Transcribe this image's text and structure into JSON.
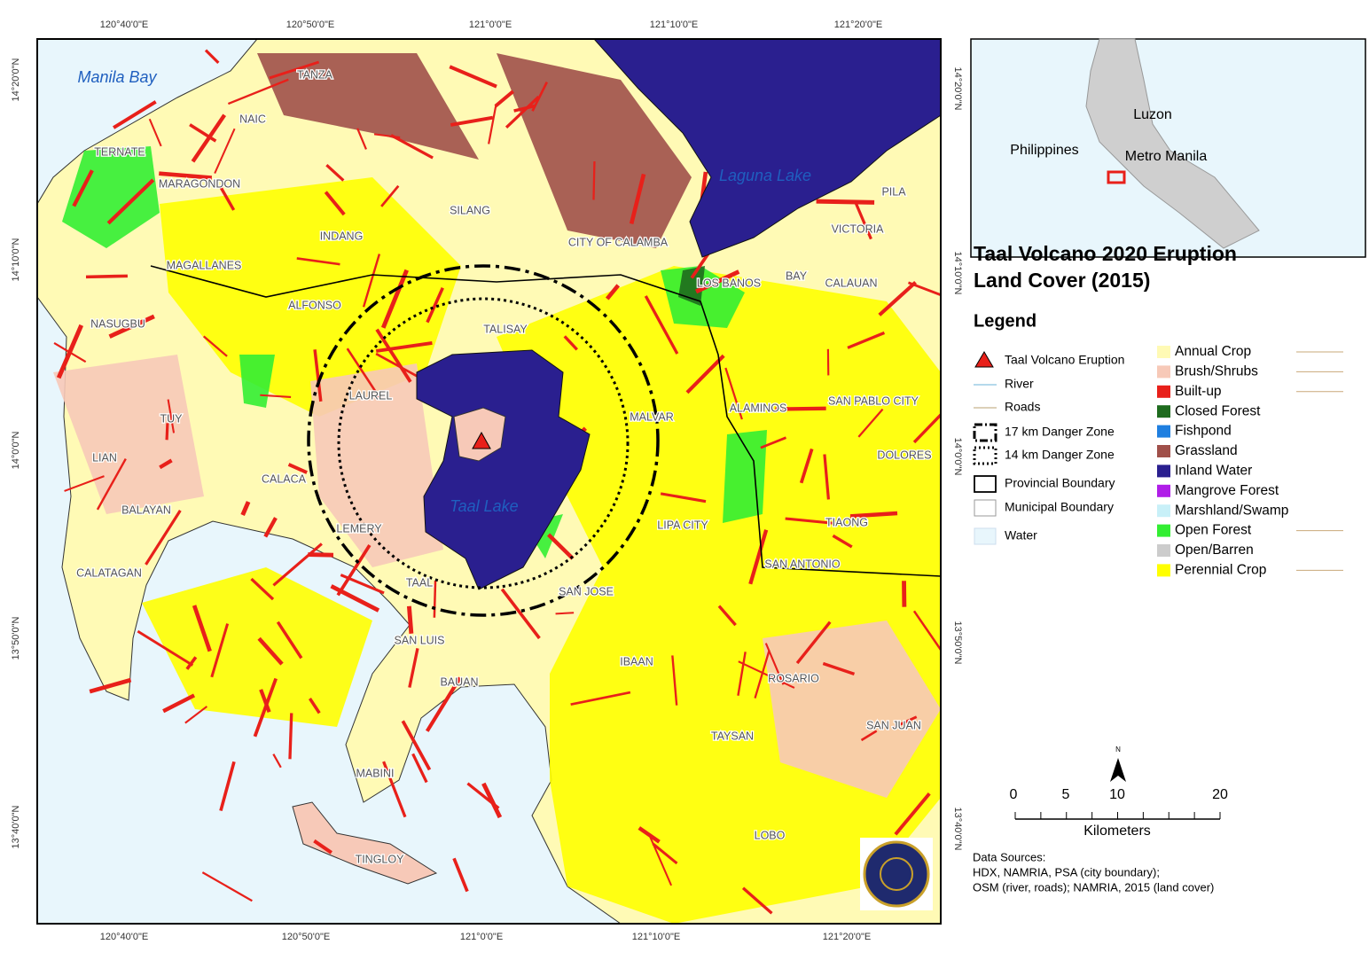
{
  "map": {
    "graticule": {
      "top": [
        "120°40'0\"E",
        "120°50'0\"E",
        "121°0'0\"E",
        "121°10'0\"E",
        "121°20'0\"E"
      ],
      "bottom": [
        "120°40'0\"E",
        "120°50'0\"E",
        "121°0'0\"E",
        "121°10'0\"E",
        "121°20'0\"E"
      ],
      "left": [
        "14°20'0\"N",
        "14°10'0\"N",
        "14°0'0\"N",
        "13°50'0\"N",
        "13°40'0\"N"
      ],
      "right": [
        "14°20'0\"N",
        "14°10'0\"N",
        "14°0'0\"N",
        "13°50'0\"N",
        "13°40'0\"N"
      ]
    },
    "water_labels": [
      "Manila Bay",
      "Laguna Lake",
      "Taal Lake"
    ],
    "places": [
      "TANZA",
      "NAIC",
      "TERNATE",
      "MARAGONDON",
      "SILANG",
      "INDANG",
      "MAGALLANES",
      "CITY OF CALAMBA",
      "LOS BANOS",
      "BAY",
      "CALAUAN",
      "VICTORIA",
      "PILA",
      "ALFONSO",
      "NASUGBU",
      "TALISAY",
      "LAUREL",
      "TUY",
      "LIAN",
      "CALACA",
      "BALAYAN",
      "LEMERY",
      "TAAL",
      "SAN JOSE",
      "MALVAR",
      "ALAMINOS",
      "SAN PABLO CITY",
      "DOLORES",
      "LIPA CITY",
      "TIAONG",
      "SAN ANTONIO",
      "CALATAGAN",
      "SAN LUIS",
      "BAUAN",
      "IBAAN",
      "ROSARIO",
      "TAYSAN",
      "SAN JUAN",
      "MABINI",
      "TINGLOY",
      "LOBO"
    ]
  },
  "inset": {
    "labels": [
      "Luzon",
      "Philippines",
      "Metro Manila"
    ]
  },
  "title": [
    "Taal Volcano 2020 Eruption",
    "Land Cover (2015)"
  ],
  "legend": {
    "title": "Legend",
    "symbols": [
      "Taal Volcano Eruption",
      "River",
      "Roads",
      "17 km Danger Zone",
      "14 km Danger Zone",
      "Provincial Boundary",
      "Municipal Boundary",
      "Water"
    ],
    "land_cover": [
      "Annual Crop",
      "Brush/Shrubs",
      "Built-up",
      "Closed Forest",
      "Fishpond",
      "Grassland",
      "Inland Water",
      "Mangrove Forest",
      "Marshland/Swamp",
      "Open Forest",
      "Open/Barren",
      "Perennial Crop"
    ]
  },
  "scale_bar": {
    "north": "N",
    "ticks": [
      "0",
      "5",
      "10",
      "20"
    ],
    "unit": "Kilometers"
  },
  "sources": {
    "label": "Data Sources:",
    "lines": [
      "HDX, NAMRIA, PSA (city boundary);",
      "OSM (river, roads); NAMRIA, 2015 (land cover)"
    ]
  }
}
